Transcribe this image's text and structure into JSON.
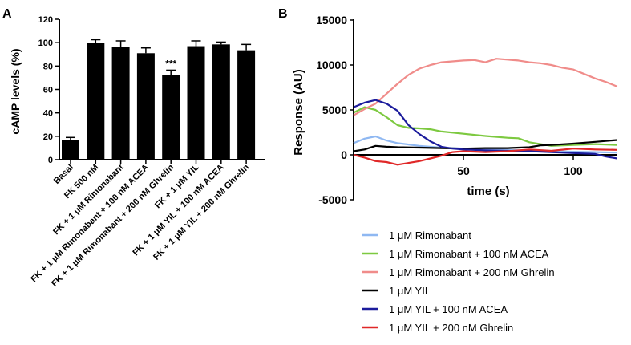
{
  "panels": {
    "a_label": "A",
    "b_label": "B"
  },
  "chart_data": [
    {
      "type": "bar",
      "panel": "A",
      "title": "",
      "xlabel": "",
      "ylabel": "cAMP levels (%)",
      "ylim": [
        0,
        120
      ],
      "yticks": [
        "0",
        "20",
        "40",
        "60",
        "80",
        "100",
        "120"
      ],
      "categories": [
        "Basal",
        "FK 500 nM",
        "FK + 1 μM Rimonabant",
        "FK + 1 μM Rimonabant + 100 nM ACEA",
        "FK + 1 μM Rimonabant + 200 nM Ghrelin",
        "FK + 1 μM YIL",
        "FK + 1 μM YIL + 100 nM ACEA",
        "FK + 1 μM YIL + 200 nM Ghrelin"
      ],
      "values": [
        17,
        100,
        96.5,
        91,
        72,
        97,
        98.5,
        93.5
      ],
      "errors": [
        2,
        2.5,
        5,
        4.5,
        4.5,
        4.5,
        2,
        5
      ],
      "significance": [
        "",
        "",
        "",
        "",
        "***",
        "",
        "",
        ""
      ],
      "bar_color": "#000000"
    },
    {
      "type": "line",
      "panel": "B",
      "title": "",
      "xlabel": "time (s)",
      "ylabel": "Response (AU)",
      "xlim": [
        0,
        120
      ],
      "ylim": [
        -5000,
        15000
      ],
      "xticks": [
        "50",
        "100"
      ],
      "yticks": [
        "-5000",
        "0",
        "5000",
        "10000",
        "15000"
      ],
      "series": [
        {
          "name": "1 μM Rimonabant",
          "color": "#8fb8f2",
          "x": [
            0,
            5,
            10,
            15,
            20,
            25,
            30,
            40,
            50,
            60,
            70,
            80,
            90,
            100,
            110,
            120
          ],
          "y": [
            1300,
            1800,
            2050,
            1600,
            1300,
            1150,
            1000,
            800,
            700,
            650,
            550,
            450,
            400,
            350,
            300,
            250
          ]
        },
        {
          "name": "1 μM Rimonabant + 100 nM ACEA",
          "color": "#7dc940",
          "x": [
            0,
            5,
            10,
            15,
            20,
            25,
            30,
            35,
            40,
            50,
            60,
            70,
            75,
            80,
            90,
            100,
            110,
            120
          ],
          "y": [
            4700,
            5300,
            5000,
            4200,
            3300,
            3000,
            2950,
            2850,
            2600,
            2350,
            2100,
            1900,
            1850,
            1400,
            1000,
            1100,
            1200,
            1100
          ]
        },
        {
          "name": "1 μM Rimonabant + 200 nM Ghrelin",
          "color": "#f08c8a",
          "x": [
            0,
            5,
            10,
            15,
            20,
            25,
            30,
            35,
            40,
            45,
            50,
            55,
            60,
            65,
            70,
            75,
            80,
            85,
            90,
            95,
            100,
            105,
            110,
            115,
            120
          ],
          "y": [
            4400,
            5100,
            5700,
            6800,
            7900,
            8900,
            9600,
            10000,
            10300,
            10400,
            10500,
            10550,
            10300,
            10700,
            10600,
            10500,
            10300,
            10200,
            10000,
            9700,
            9500,
            9000,
            8500,
            8100,
            7600
          ]
        },
        {
          "name": "1 μM YIL",
          "color": "#000000",
          "x": [
            0,
            5,
            10,
            15,
            20,
            30,
            40,
            50,
            60,
            70,
            80,
            85,
            90,
            100,
            110,
            120
          ],
          "y": [
            400,
            600,
            1000,
            900,
            850,
            800,
            750,
            700,
            750,
            750,
            850,
            1050,
            1100,
            1250,
            1450,
            1650
          ]
        },
        {
          "name": "1 μM YIL + 100 nM ACEA",
          "color": "#1c1c9c",
          "x": [
            0,
            5,
            10,
            15,
            20,
            25,
            30,
            35,
            40,
            45,
            50,
            60,
            70,
            80,
            90,
            100,
            110,
            115,
            120
          ],
          "y": [
            5300,
            5800,
            6100,
            5700,
            4900,
            3300,
            2300,
            1500,
            900,
            700,
            600,
            500,
            450,
            400,
            300,
            200,
            100,
            -200,
            -400
          ]
        },
        {
          "name": "1 μM YIL + 200 nM Ghrelin",
          "color": "#e02828",
          "x": [
            0,
            5,
            10,
            15,
            20,
            25,
            30,
            35,
            40,
            45,
            50,
            60,
            70,
            80,
            90,
            100,
            110,
            120
          ],
          "y": [
            0,
            -300,
            -700,
            -800,
            -1100,
            -900,
            -700,
            -400,
            -100,
            300,
            400,
            300,
            400,
            600,
            450,
            700,
            600,
            550
          ]
        }
      ],
      "legend_position": "bottom"
    }
  ]
}
